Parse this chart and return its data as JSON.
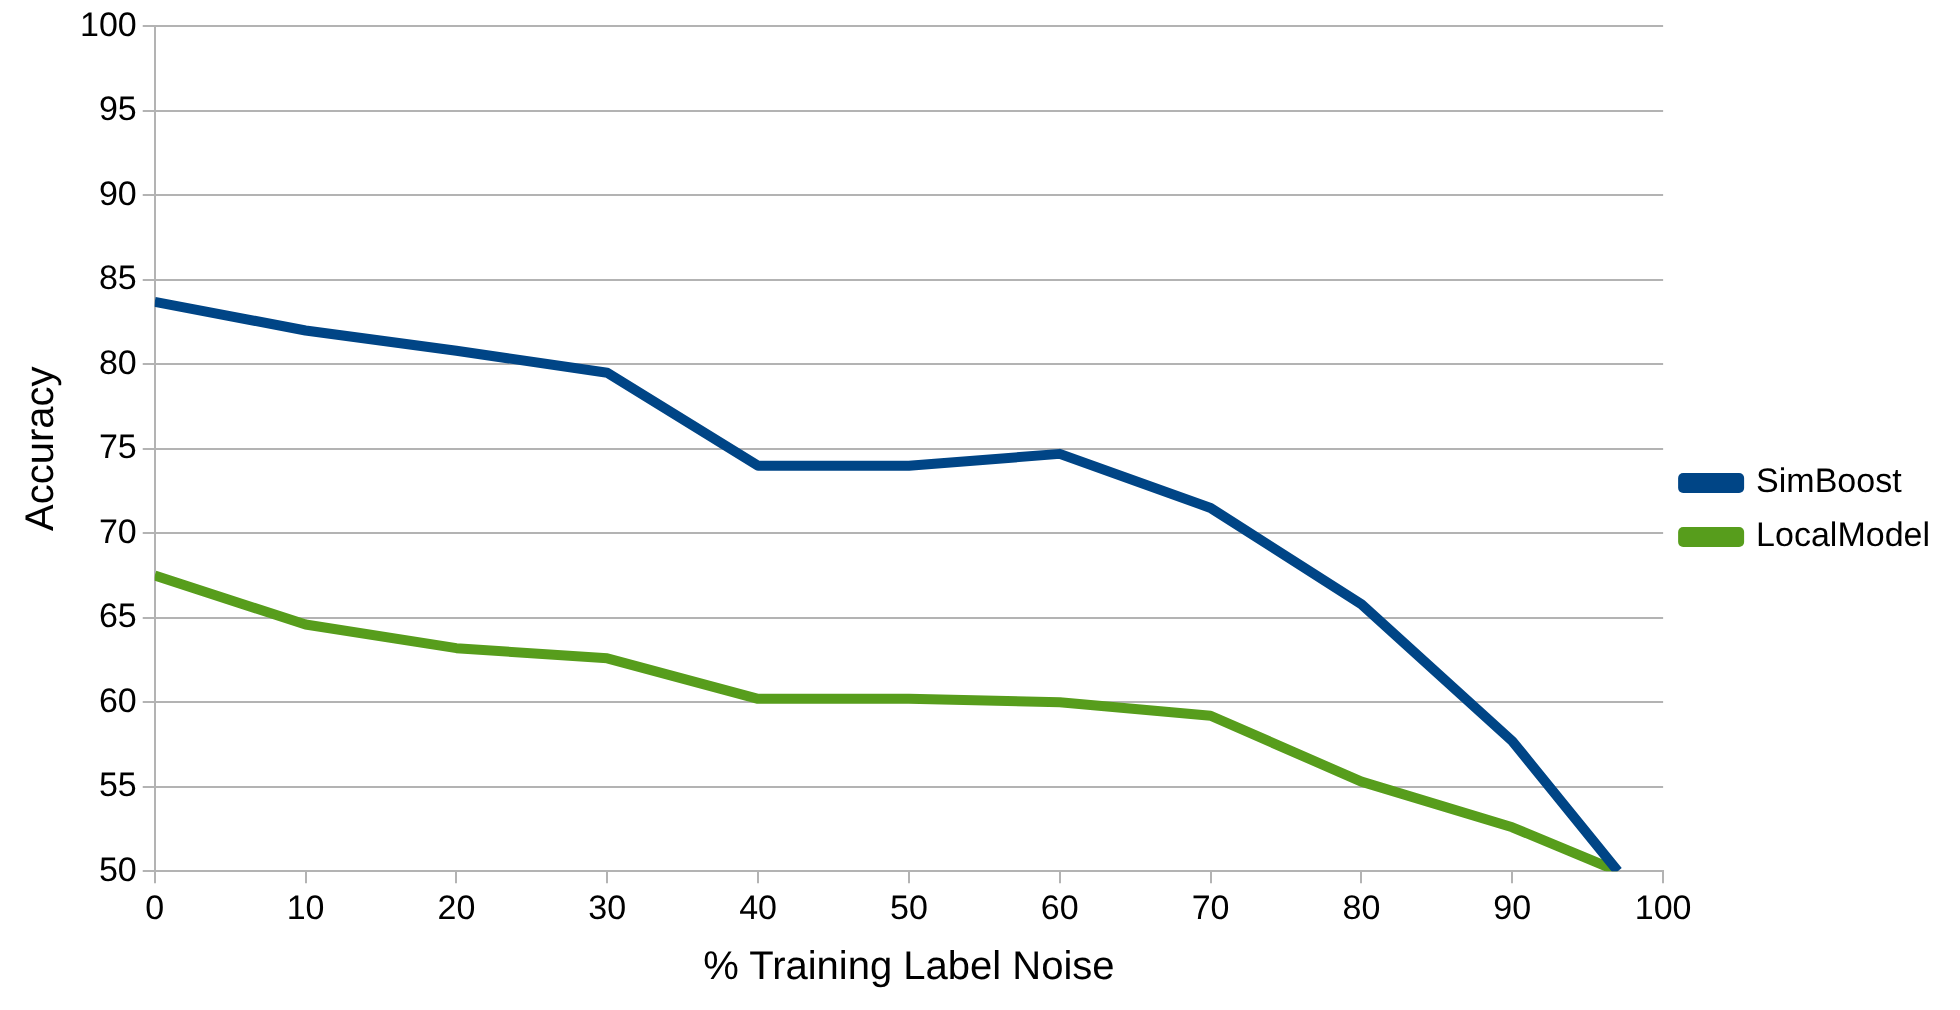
{
  "chart_data": {
    "type": "line",
    "xlabel": "% Training Label Noise",
    "ylabel": "Accuracy",
    "xlim": [
      0,
      100
    ],
    "xticks": [
      0,
      10,
      20,
      30,
      40,
      50,
      60,
      70,
      80,
      90,
      100
    ],
    "ylim": [
      50,
      100
    ],
    "yticks": [
      50,
      55,
      60,
      65,
      70,
      75,
      80,
      85,
      90,
      95,
      100
    ],
    "x": [
      0,
      10,
      20,
      30,
      40,
      50,
      60,
      70,
      80,
      90,
      97
    ],
    "series": [
      {
        "name": "SimBoost",
        "color": "#004586",
        "values": [
          83.7,
          82.0,
          80.8,
          79.5,
          74.0,
          74.0,
          74.7,
          71.5,
          65.8,
          57.7,
          50
        ]
      },
      {
        "name": "LocalModel",
        "color": "#579d1c",
        "values": [
          67.5,
          64.6,
          63.2,
          62.6,
          60.2,
          60.2,
          60.0,
          59.2,
          55.3,
          52.6,
          50
        ]
      }
    ],
    "grid": "y",
    "legend": "right",
    "marker": "none",
    "line_style": "solid"
  }
}
